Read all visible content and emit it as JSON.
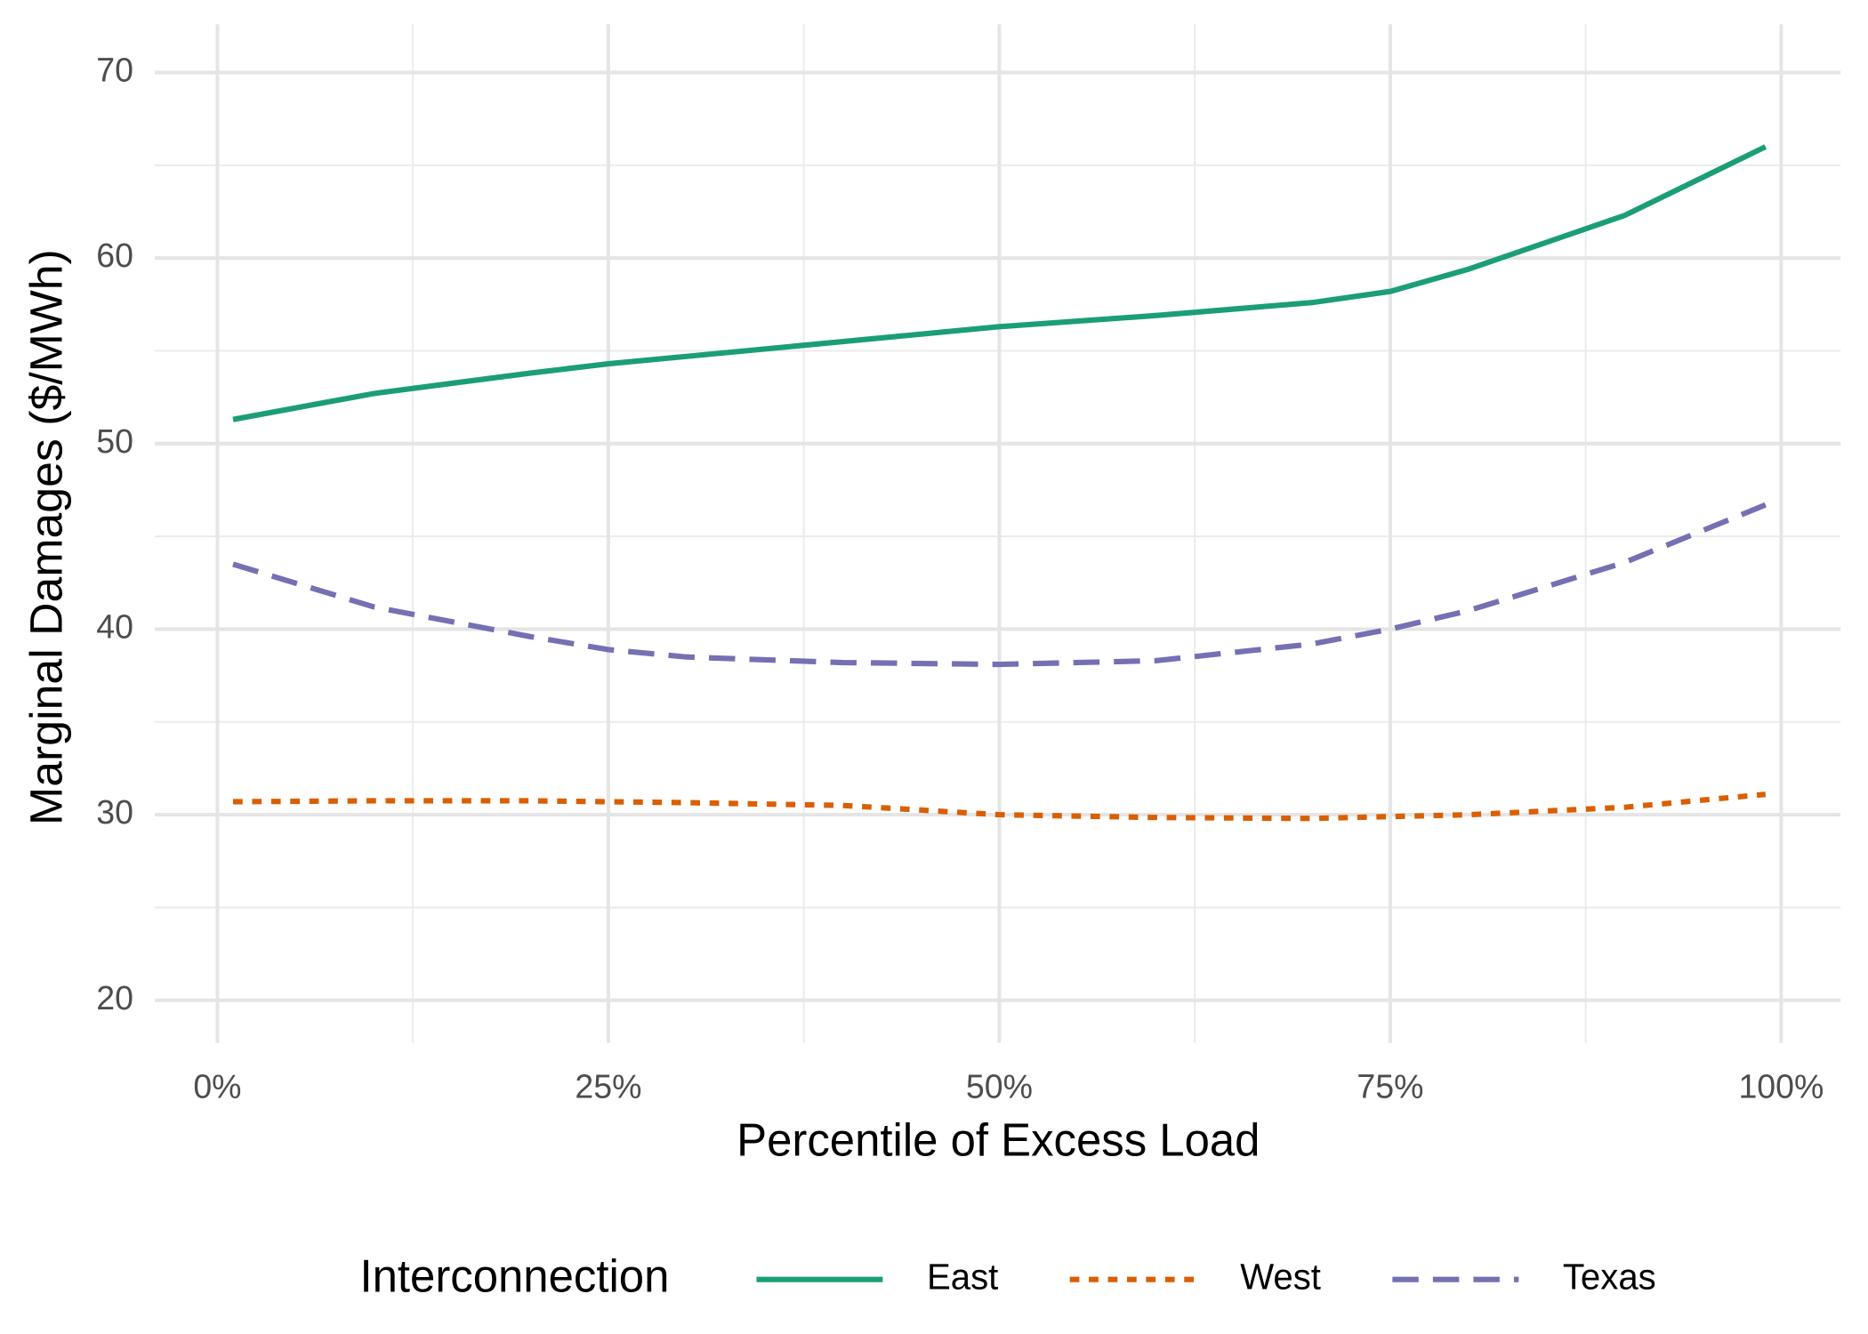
{
  "chart_data": {
    "type": "line",
    "x_label": "Percentile of Excess Load",
    "y_label": "Marginal Damages ($/MWh)",
    "legend_title": "Interconnection",
    "legend": "bottom",
    "grid": true,
    "x": [
      0.01,
      0.1,
      0.2,
      0.25,
      0.3,
      0.4,
      0.5,
      0.6,
      0.7,
      0.75,
      0.8,
      0.9,
      0.99
    ],
    "series": [
      {
        "name": "East",
        "color": "#1b9e77",
        "linestyle": "solid",
        "values": [
          51.3,
          52.7,
          53.8,
          54.3,
          54.7,
          55.5,
          56.3,
          56.9,
          57.6,
          58.2,
          59.4,
          62.3,
          66.0
        ]
      },
      {
        "name": "West",
        "color": "#d95f02",
        "linestyle": "dotted",
        "values": [
          30.7,
          30.75,
          30.75,
          30.7,
          30.65,
          30.5,
          30.0,
          29.85,
          29.8,
          29.9,
          30.0,
          30.4,
          31.1
        ]
      },
      {
        "name": "Texas",
        "color": "#7570b3",
        "linestyle": "dashed",
        "values": [
          43.5,
          41.2,
          39.6,
          38.9,
          38.5,
          38.2,
          38.1,
          38.3,
          39.2,
          40.0,
          41.0,
          43.6,
          46.7
        ]
      }
    ],
    "xlim": [
      -0.04,
      1.038
    ],
    "xticks": [
      {
        "value": 0,
        "label": "0%"
      },
      {
        "value": 0.25,
        "label": "25%"
      },
      {
        "value": 0.5,
        "label": "50%"
      },
      {
        "value": 0.75,
        "label": "75%"
      },
      {
        "value": 1,
        "label": "100%"
      }
    ],
    "ylim": [
      17.7,
      72.6
    ],
    "yticks": [
      20,
      30,
      40,
      50,
      60,
      70
    ]
  }
}
